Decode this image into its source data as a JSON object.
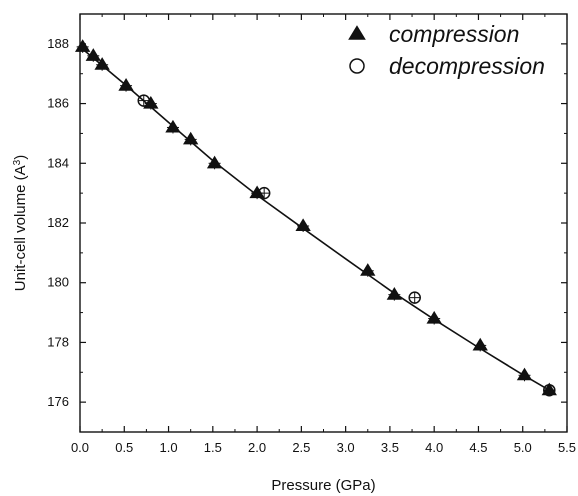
{
  "chart_data": {
    "type": "scatter",
    "title": "",
    "xlabel": "Pressure (GPa)",
    "ylabel_prefix": "Unit-cell volume (A",
    "ylabel_superscript": "3",
    "ylabel_suffix": ")",
    "xlim": [
      0.0,
      5.5
    ],
    "ylim": [
      175,
      189
    ],
    "x_ticks": [
      0.0,
      0.5,
      1.0,
      1.5,
      2.0,
      2.5,
      3.0,
      3.5,
      4.0,
      4.5,
      5.0,
      5.5
    ],
    "x_tick_labels": [
      "0.0",
      "0.5",
      "1.0",
      "1.5",
      "2.0",
      "2.5",
      "3.0",
      "3.5",
      "4.0",
      "4.5",
      "5.0",
      "5.5"
    ],
    "y_ticks": [
      176,
      178,
      180,
      182,
      184,
      186,
      188
    ],
    "y_tick_labels": [
      "176",
      "178",
      "180",
      "182",
      "184",
      "186",
      "188"
    ],
    "grid": false,
    "legend_position": "top-right",
    "series": [
      {
        "name": "compression",
        "marker": "filled-triangle",
        "color": "#111111",
        "points": [
          {
            "x": 0.03,
            "y": 187.9
          },
          {
            "x": 0.15,
            "y": 187.6
          },
          {
            "x": 0.25,
            "y": 187.3
          },
          {
            "x": 0.52,
            "y": 186.6
          },
          {
            "x": 0.8,
            "y": 186.0
          },
          {
            "x": 1.05,
            "y": 185.2
          },
          {
            "x": 1.25,
            "y": 184.8
          },
          {
            "x": 1.52,
            "y": 184.0
          },
          {
            "x": 2.0,
            "y": 183.0
          },
          {
            "x": 2.52,
            "y": 181.9
          },
          {
            "x": 3.25,
            "y": 180.4
          },
          {
            "x": 3.55,
            "y": 179.6
          },
          {
            "x": 4.0,
            "y": 178.8
          },
          {
            "x": 4.52,
            "y": 177.9
          },
          {
            "x": 5.02,
            "y": 176.9
          },
          {
            "x": 5.3,
            "y": 176.4
          }
        ]
      },
      {
        "name": "decompression",
        "marker": "open-circle",
        "color": "#111111",
        "points": [
          {
            "x": 0.72,
            "y": 186.1
          },
          {
            "x": 2.08,
            "y": 183.0
          },
          {
            "x": 3.78,
            "y": 179.5
          },
          {
            "x": 5.3,
            "y": 176.4
          }
        ]
      }
    ],
    "fit_line": {
      "x": [
        0.0,
        0.5,
        1.0,
        1.5,
        2.0,
        2.5,
        3.0,
        3.5,
        4.0,
        4.5,
        5.0,
        5.3
      ],
      "y": [
        187.9,
        186.66,
        185.37,
        184.09,
        182.93,
        181.86,
        180.8,
        179.75,
        178.77,
        177.83,
        176.92,
        176.4
      ],
      "color": "#111111"
    }
  }
}
